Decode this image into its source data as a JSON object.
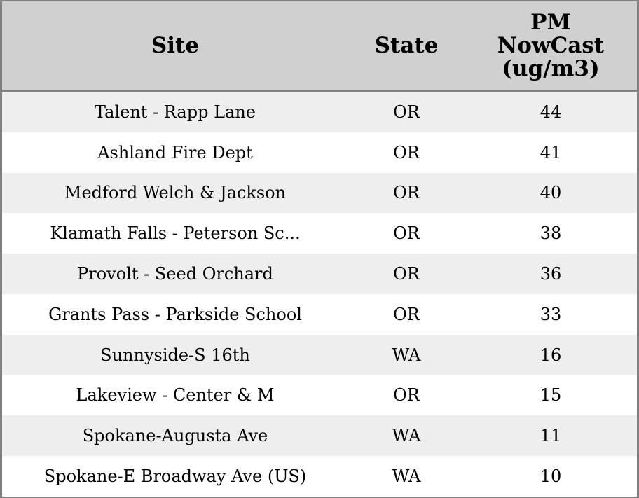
{
  "table": {
    "headers": [
      "Site",
      "State",
      "PM NowCast (ug/m3)"
    ],
    "header_lines": {
      "pm": [
        "PM",
        "NowCast",
        "(ug/m3)"
      ]
    },
    "rows": [
      {
        "site": "Talent - Rapp Lane",
        "state": "OR",
        "pm": "44"
      },
      {
        "site": "Ashland Fire Dept",
        "state": "OR",
        "pm": "41"
      },
      {
        "site": "Medford Welch & Jackson",
        "state": "OR",
        "pm": "40"
      },
      {
        "site": "Klamath Falls - Peterson Sc...",
        "state": "OR",
        "pm": "38"
      },
      {
        "site": "Provolt - Seed Orchard",
        "state": "OR",
        "pm": "36"
      },
      {
        "site": "Grants Pass - Parkside School",
        "state": "OR",
        "pm": "33"
      },
      {
        "site": "Sunnyside-S 16th",
        "state": "WA",
        "pm": "16"
      },
      {
        "site": "Lakeview - Center & M",
        "state": "OR",
        "pm": "15"
      },
      {
        "site": "Spokane-Augusta Ave",
        "state": "WA",
        "pm": "11"
      },
      {
        "site": "Spokane-E Broadway Ave (US)",
        "state": "WA",
        "pm": "10"
      }
    ]
  },
  "colors": {
    "header_bg": "#d0d0d0",
    "stripe": "#eeeeee",
    "border": "#808080"
  }
}
